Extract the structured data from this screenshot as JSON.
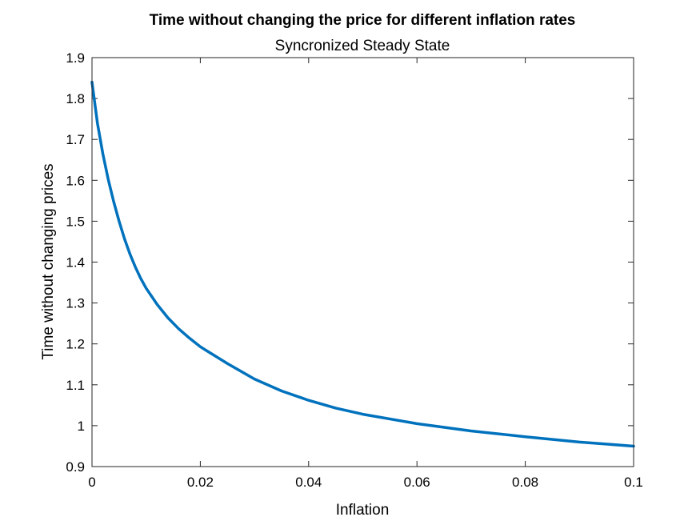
{
  "chart_data": {
    "type": "line",
    "title": "Time without changing the price for different inflation rates",
    "subtitle": "Syncronized Steady State",
    "xlabel": "Inflation",
    "ylabel": "Time without changing prices",
    "xlim": [
      0,
      0.1
    ],
    "ylim": [
      0.9,
      1.9
    ],
    "xticks": [
      0,
      0.02,
      0.04,
      0.06,
      0.08,
      0.1
    ],
    "xtick_labels": [
      "0",
      "0.02",
      "0.04",
      "0.06",
      "0.08",
      "0.1"
    ],
    "yticks": [
      0.9,
      1.0,
      1.1,
      1.2,
      1.3,
      1.4,
      1.5,
      1.6,
      1.7,
      1.8,
      1.9
    ],
    "ytick_labels": [
      "0.9",
      "1",
      "1.1",
      "1.2",
      "1.3",
      "1.4",
      "1.5",
      "1.6",
      "1.7",
      "1.8",
      "1.9"
    ],
    "grid": false,
    "series": [
      {
        "color": "#0072BD",
        "x": [
          0.0,
          0.001,
          0.002,
          0.003,
          0.004,
          0.005,
          0.006,
          0.007,
          0.008,
          0.009,
          0.01,
          0.012,
          0.014,
          0.016,
          0.018,
          0.02,
          0.025,
          0.03,
          0.035,
          0.04,
          0.045,
          0.05,
          0.06,
          0.07,
          0.08,
          0.09,
          0.1
        ],
        "y": [
          1.84,
          1.74,
          1.665,
          1.602,
          1.548,
          1.5,
          1.457,
          1.42,
          1.388,
          1.36,
          1.336,
          1.297,
          1.264,
          1.237,
          1.214,
          1.193,
          1.152,
          1.114,
          1.085,
          1.062,
          1.043,
          1.028,
          1.005,
          0.987,
          0.973,
          0.96,
          0.95
        ]
      }
    ]
  }
}
